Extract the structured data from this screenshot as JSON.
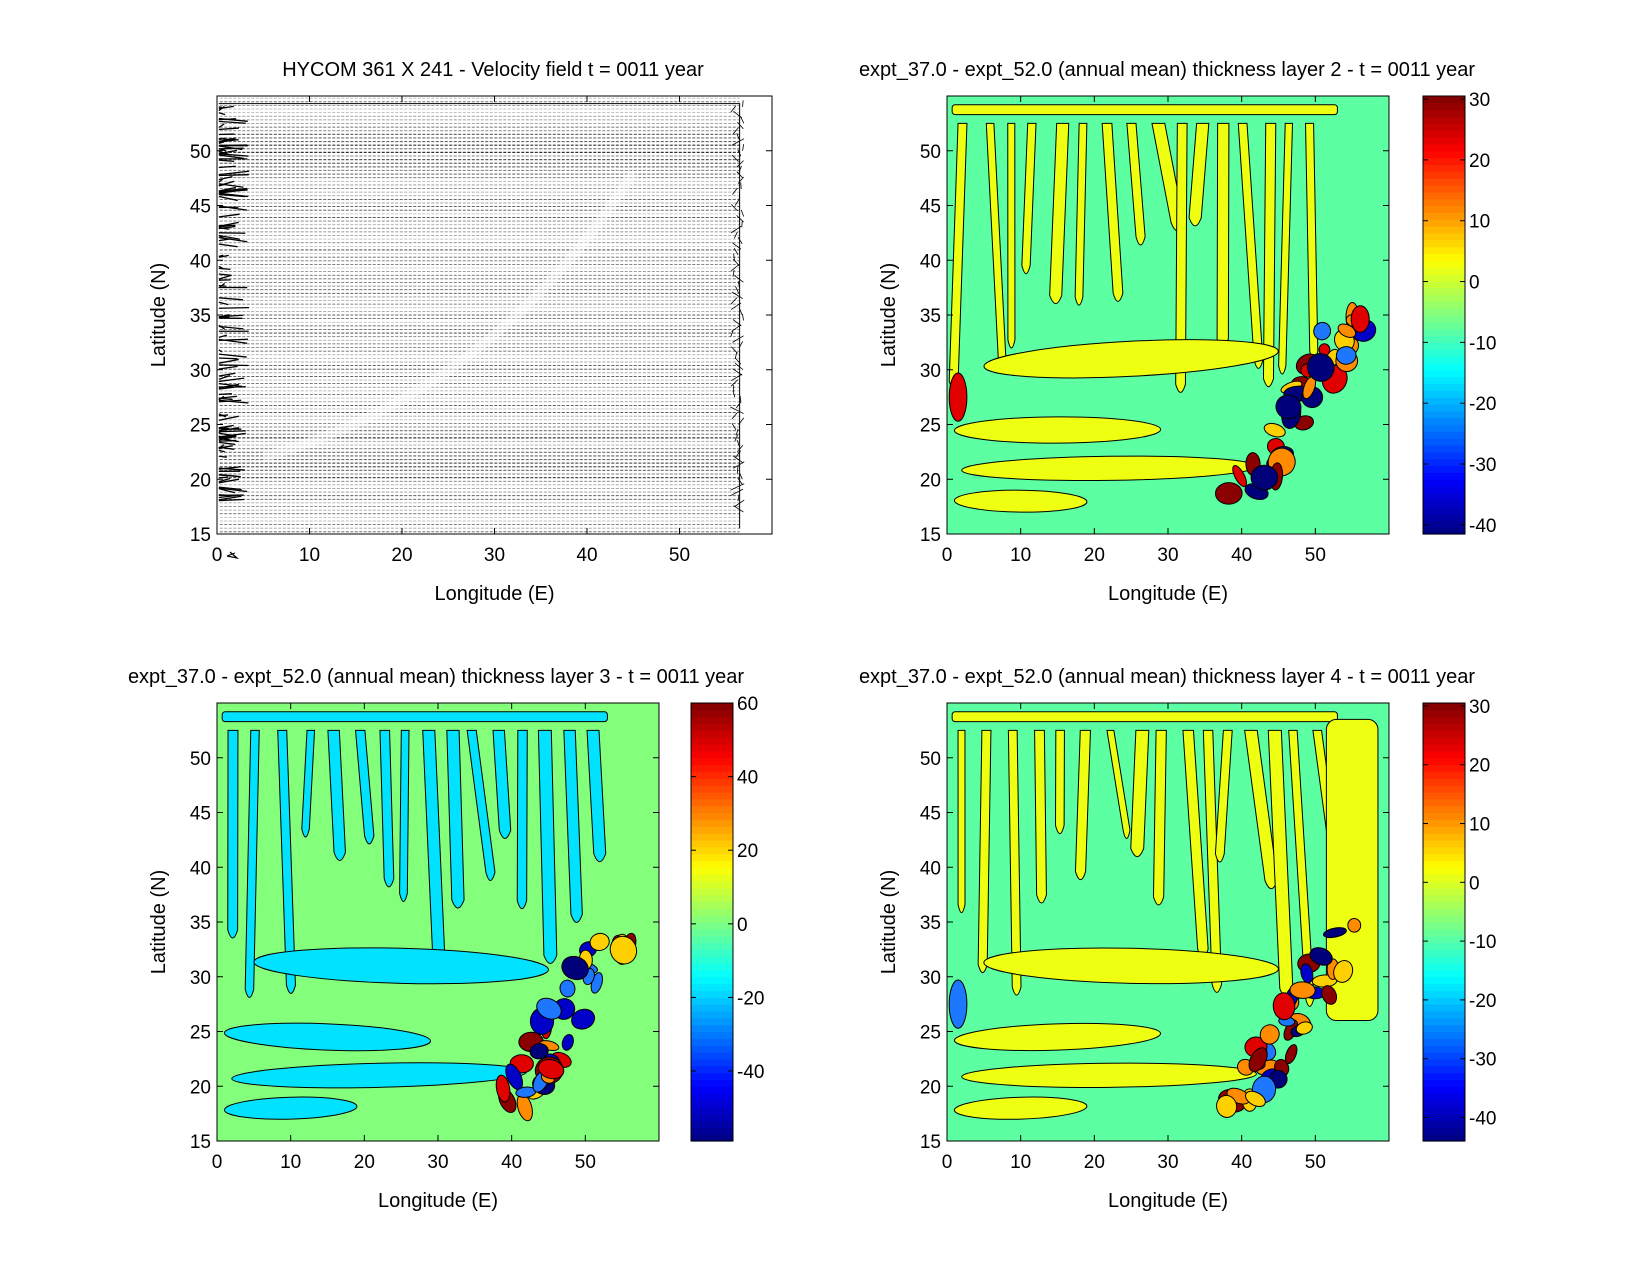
{
  "chart_data": [
    {
      "type": "quiver",
      "title": "HYCOM 361 X 241 - Velocity field  t = 0011 year",
      "xlabel": "Longitude (E)",
      "ylabel": "Latitude (N)",
      "xlim": [
        0,
        60
      ],
      "ylim": [
        15,
        55
      ],
      "xticks": [
        "0",
        "10",
        "20",
        "30",
        "40",
        "50"
      ],
      "yticks": [
        "15",
        "20",
        "25",
        "30",
        "35",
        "40",
        "45",
        "50"
      ],
      "grid": false
    },
    {
      "type": "heatmap",
      "title": "expt_37.0 - expt_52.0 (annual mean) thickness layer 2 - t = 0011 year",
      "xlabel": "Longitude (E)",
      "ylabel": "Latitude (N)",
      "xlim": [
        0,
        60
      ],
      "ylim": [
        15,
        55
      ],
      "xticks": [
        "0",
        "10",
        "20",
        "30",
        "40",
        "50"
      ],
      "yticks": [
        "15",
        "20",
        "25",
        "30",
        "35",
        "40",
        "45",
        "50"
      ],
      "colorbar": {
        "range": [
          -41.5,
          30.5
        ],
        "ticks": [
          "30",
          "20",
          "10",
          "0",
          "-10",
          "-20",
          "-30",
          "-40"
        ],
        "tick_values": [
          30,
          20,
          10,
          0,
          -10,
          -20,
          -30,
          -40
        ]
      },
      "colors": {
        "background": "#5cffa2",
        "fingers": "#eeff12"
      }
    },
    {
      "type": "heatmap",
      "title": "expt_37.0 - expt_52.0 (annual mean) thickness layer 3 - t = 0011 year",
      "xlabel": "Longitude (E)",
      "ylabel": "Latitude (N)",
      "xlim": [
        0,
        60
      ],
      "ylim": [
        15,
        55
      ],
      "xticks": [
        "0",
        "10",
        "20",
        "30",
        "40",
        "50"
      ],
      "yticks": [
        "15",
        "20",
        "25",
        "30",
        "35",
        "40",
        "45",
        "50"
      ],
      "colorbar": {
        "range": [
          -59,
          60
        ],
        "ticks": [
          "60",
          "40",
          "20",
          "0",
          "-20",
          "-40"
        ],
        "tick_values": [
          60,
          40,
          20,
          0,
          -20,
          -40
        ]
      },
      "colors": {
        "background": "#84ff7c",
        "fingers": "#00e2ff"
      }
    },
    {
      "type": "heatmap",
      "title": "expt_37.0 - expt_52.0 (annual mean) thickness layer 4 - t = 0011 year",
      "xlabel": "Longitude (E)",
      "ylabel": "Latitude (N)",
      "xlim": [
        0,
        60
      ],
      "ylim": [
        15,
        55
      ],
      "xticks": [
        "0",
        "10",
        "20",
        "30",
        "40",
        "50"
      ],
      "yticks": [
        "15",
        "20",
        "25",
        "30",
        "35",
        "40",
        "45",
        "50"
      ],
      "colorbar": {
        "range": [
          -44,
          30.5
        ],
        "ticks": [
          "30",
          "20",
          "10",
          "0",
          "-10",
          "-20",
          "-30",
          "-40"
        ],
        "tick_values": [
          30,
          20,
          10,
          0,
          -10,
          -20,
          -30,
          -40
        ]
      },
      "colors": {
        "background": "#5cffa2",
        "fingers": "#eeff12"
      }
    }
  ]
}
